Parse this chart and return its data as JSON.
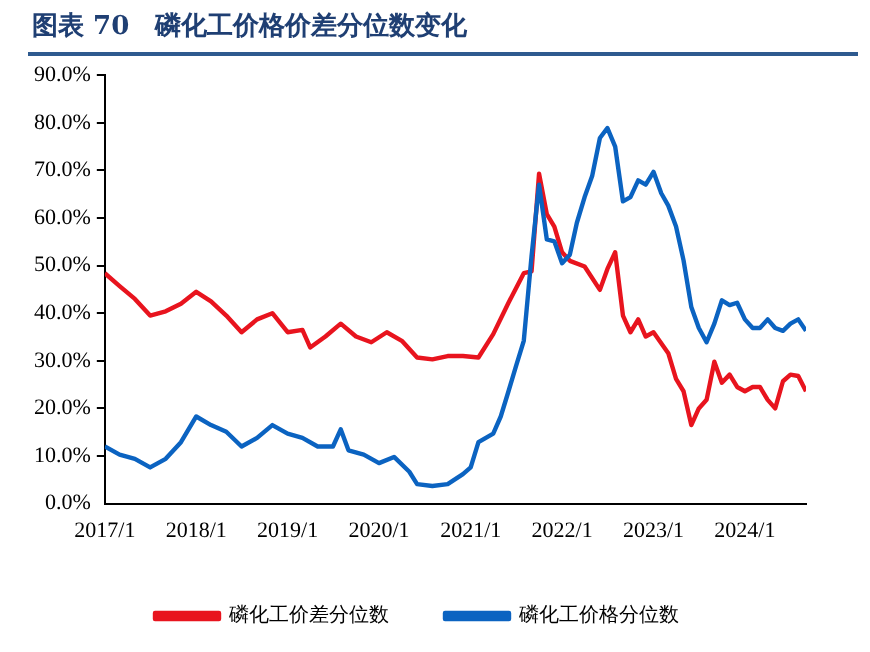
{
  "chart_data": {
    "type": "line",
    "title": "图表 70　磷化工价格价差分位数变化",
    "x": [
      "2017-01",
      "2017-03",
      "2017-05",
      "2017-07",
      "2017-09",
      "2017-11",
      "2018-01",
      "2018-03",
      "2018-05",
      "2018-07",
      "2018-09",
      "2018-11",
      "2019-01",
      "2019-03",
      "2019-04",
      "2019-06",
      "2019-08",
      "2019-10",
      "2019-12",
      "2020-02",
      "2020-04",
      "2020-06",
      "2020-08",
      "2020-10",
      "2020-12",
      "2021-02",
      "2021-04",
      "2021-06",
      "2021-08",
      "2021-09",
      "2021-10",
      "2021-11",
      "2021-12",
      "2022-01",
      "2022-02",
      "2022-04",
      "2022-06",
      "2022-07",
      "2022-08",
      "2022-09",
      "2022-10",
      "2022-11",
      "2022-12",
      "2023-01",
      "2023-03",
      "2023-04",
      "2023-05",
      "2023-06",
      "2023-07",
      "2023-08",
      "2023-09",
      "2023-10",
      "2023-11",
      "2023-12",
      "2024-01",
      "2024-02",
      "2024-03",
      "2024-04",
      "2024-05",
      "2024-06",
      "2024-07",
      "2024-08",
      "2024-09"
    ],
    "series": [
      {
        "name": "磷化工价差分位数",
        "color": "#e8141e",
        "values": [
          48.4,
          45.7,
          43,
          39.5,
          40.4,
          42,
          44.5,
          42.5,
          39.5,
          36,
          38.7,
          40,
          36,
          36.5,
          32.8,
          35.1,
          37.8,
          35.1,
          33.9,
          36,
          34.2,
          30.7,
          30.3,
          31,
          31,
          30.7,
          35.6,
          42.2,
          48.4,
          48.8,
          69.3,
          60.8,
          58.2,
          52.8,
          51,
          49.8,
          44.9,
          49.3,
          52.8,
          39.5,
          36,
          38.7,
          35.1,
          36,
          31.6,
          26.2,
          23.6,
          16.5,
          20,
          21.8,
          29.8,
          25.4,
          27.1,
          24.5,
          23.6,
          24.5,
          24.5,
          21.8,
          20,
          25.7,
          27.1,
          26.8,
          23.6
        ]
      },
      {
        "name": "磷化工价格分位数",
        "color": "#0b63c1",
        "x": [
          "2017-01",
          "2017-03",
          "2017-05",
          "2017-07",
          "2017-09",
          "2017-11",
          "2018-01",
          "2018-03",
          "2018-05",
          "2018-07",
          "2018-09",
          "2018-11",
          "2019-01",
          "2019-03",
          "2019-05",
          "2019-07",
          "2019-08",
          "2019-09",
          "2019-11",
          "2020-01",
          "2020-03",
          "2020-05",
          "2020-06",
          "2020-08",
          "2020-10",
          "2020-12",
          "2021-01",
          "2021-02",
          "2021-04",
          "2021-05",
          "2021-06",
          "2021-07",
          "2021-08",
          "2021-09",
          "2021-10",
          "2021-11",
          "2021-12",
          "2022-01",
          "2022-02",
          "2022-03",
          "2022-04",
          "2022-05",
          "2022-06",
          "2022-07",
          "2022-08",
          "2022-09",
          "2022-10",
          "2022-11",
          "2022-12",
          "2023-01",
          "2023-02",
          "2023-03",
          "2023-04",
          "2023-05",
          "2023-06",
          "2023-07",
          "2023-08",
          "2023-09",
          "2023-10",
          "2023-11",
          "2023-12",
          "2024-01",
          "2024-02",
          "2024-03",
          "2024-04",
          "2024-05",
          "2024-06",
          "2024-07",
          "2024-08",
          "2024-09"
        ],
        "values": [
          12,
          10.3,
          9.4,
          7.6,
          9.4,
          12.9,
          18.3,
          16.5,
          15.1,
          12,
          13.8,
          16.5,
          14.7,
          13.8,
          12,
          12,
          15.6,
          11.2,
          10.3,
          8.5,
          9.8,
          6.7,
          4.1,
          3.7,
          4.1,
          6.2,
          7.6,
          12.9,
          14.7,
          18.3,
          23.6,
          28.9,
          34.2,
          52,
          67,
          55.5,
          55.1,
          50.5,
          52.3,
          59,
          64.4,
          68.8,
          76.8,
          78.9,
          75,
          63.5,
          64.4,
          67.9,
          67,
          69.7,
          65.2,
          62.6,
          58.2,
          51.1,
          41.3,
          36.9,
          33.9,
          37.8,
          42.7,
          41.7,
          42.2,
          38.7,
          36.9,
          36.9,
          38.7,
          36.9,
          36.3,
          37.8,
          38.7,
          36.3
        ]
      }
    ],
    "xlim": [
      "2017-01",
      "2024-09"
    ],
    "xticks": [
      {
        "value": "2017-01",
        "label": "2017/1"
      },
      {
        "value": "2018-01",
        "label": "2018/1"
      },
      {
        "value": "2019-01",
        "label": "2019/1"
      },
      {
        "value": "2020-01",
        "label": "2020/1"
      },
      {
        "value": "2021-01",
        "label": "2021/1"
      },
      {
        "value": "2022-01",
        "label": "2022/1"
      },
      {
        "value": "2023-01",
        "label": "2023/1"
      },
      {
        "value": "2024-01",
        "label": "2024/1"
      }
    ],
    "ylim": [
      0,
      90
    ],
    "yticks": [
      {
        "value": 0,
        "label": "0.0%"
      },
      {
        "value": 10,
        "label": "10.0%"
      },
      {
        "value": 20,
        "label": "20.0%"
      },
      {
        "value": 30,
        "label": "30.0%"
      },
      {
        "value": 40,
        "label": "40.0%"
      },
      {
        "value": 50,
        "label": "50.0%"
      },
      {
        "value": 60,
        "label": "60.0%"
      },
      {
        "value": 70,
        "label": "70.0%"
      },
      {
        "value": 80,
        "label": "80.0%"
      },
      {
        "value": 90,
        "label": "90.0%"
      }
    ],
    "grid": false,
    "legend": "bottom",
    "marker": "none",
    "line_style": "solid"
  }
}
